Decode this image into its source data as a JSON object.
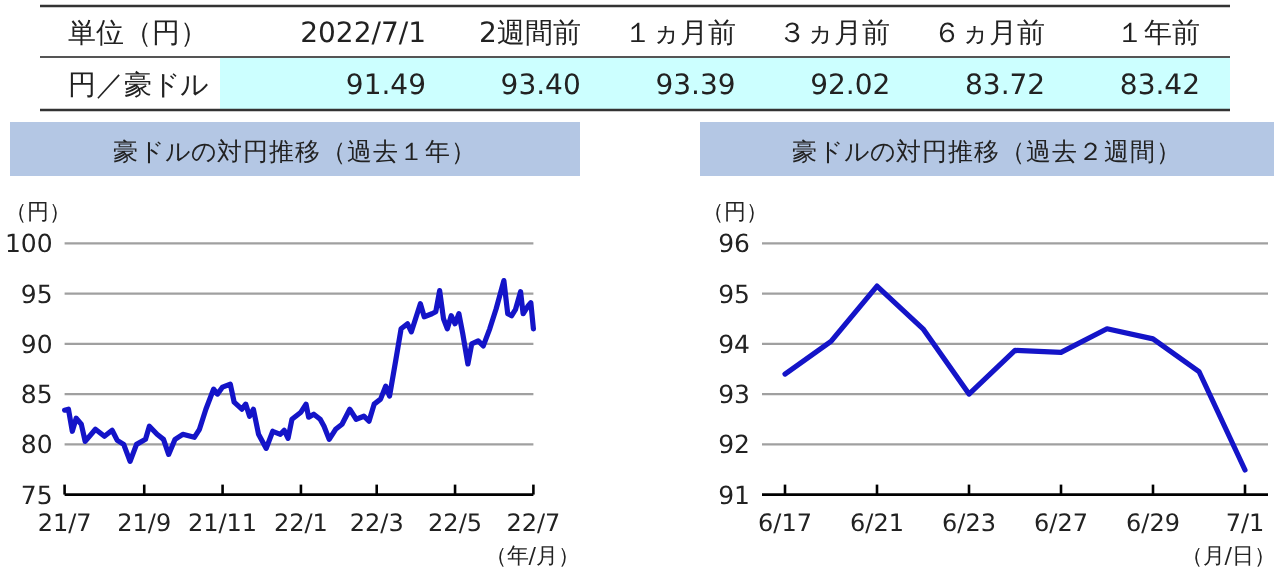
{
  "chart_data": [
    {
      "type": "other",
      "annotations": [
        "単位（円）",
        "円／豪ドル"
      ],
      "categories": [
        "2022/7/1",
        "2週間前",
        "１ヵ月前",
        "３ヵ月前",
        "６ヵ月前",
        "１年前"
      ],
      "value_labels": [
        "91.49",
        "93.40",
        "93.39",
        "92.02",
        "83.72",
        "83.42"
      ]
    },
    {
      "type": "line",
      "title": "豪ドルの対円推移（過去１年）",
      "ylabel": "（円）",
      "xlabel": "（年/月）",
      "grid": "y",
      "x": [
        "2021-07-01",
        "2021-07-04",
        "2021-07-07",
        "2021-07-10",
        "2021-07-14",
        "2021-07-17",
        "2021-07-25",
        "2021-08-01",
        "2021-08-07",
        "2021-08-11",
        "2021-08-16",
        "2021-08-21",
        "2021-08-26",
        "2021-09-02",
        "2021-09-05",
        "2021-09-11",
        "2021-09-16",
        "2021-09-20",
        "2021-09-25",
        "2021-10-01",
        "2021-10-10",
        "2021-10-14",
        "2021-10-19",
        "2021-10-25",
        "2021-10-28",
        "2021-11-01",
        "2021-11-07",
        "2021-11-10",
        "2021-11-16",
        "2021-11-19",
        "2021-11-22",
        "2021-11-25",
        "2021-11-29",
        "2021-12-05",
        "2021-12-10",
        "2021-12-16",
        "2021-12-19",
        "2021-12-22",
        "2021-12-25",
        "2022-01-01",
        "2022-01-05",
        "2022-01-07",
        "2022-01-11",
        "2022-01-16",
        "2022-01-19",
        "2022-01-23",
        "2022-01-28",
        "2022-02-02",
        "2022-02-08",
        "2022-02-13",
        "2022-02-19",
        "2022-02-23",
        "2022-02-27",
        "2022-03-04",
        "2022-03-08",
        "2022-03-11",
        "2022-03-16",
        "2022-03-20",
        "2022-03-25",
        "2022-03-28",
        "2022-04-04",
        "2022-04-07",
        "2022-04-13",
        "2022-04-16",
        "2022-04-19",
        "2022-04-22",
        "2022-04-25",
        "2022-04-28",
        "2022-05-01",
        "2022-05-04",
        "2022-05-07",
        "2022-05-11",
        "2022-05-14",
        "2022-05-19",
        "2022-05-23",
        "2022-05-28",
        "2022-06-02",
        "2022-06-08",
        "2022-06-11",
        "2022-06-14",
        "2022-06-17",
        "2022-06-21",
        "2022-06-23",
        "2022-06-27",
        "2022-06-29",
        "2022-07-01"
      ],
      "series": [
        {
          "color": "#1414c8",
          "values": [
            83.4,
            83.5,
            81.3,
            82.6,
            82.0,
            80.3,
            81.5,
            80.8,
            81.4,
            80.4,
            80.0,
            78.3,
            80.0,
            80.5,
            81.8,
            81.0,
            80.5,
            79.0,
            80.5,
            81.0,
            80.7,
            81.5,
            83.5,
            85.5,
            85.0,
            85.7,
            86.0,
            84.2,
            83.5,
            84.0,
            82.8,
            83.5,
            81.0,
            79.6,
            81.3,
            81.0,
            81.4,
            80.6,
            82.5,
            83.2,
            84.0,
            82.7,
            83.0,
            82.5,
            81.8,
            80.5,
            81.5,
            82.0,
            83.5,
            82.5,
            82.8,
            82.3,
            84.0,
            84.5,
            85.8,
            84.8,
            88.5,
            91.5,
            92.0,
            91.2,
            94.0,
            92.7,
            93.0,
            93.2,
            95.3,
            92.5,
            91.5,
            92.8,
            92.0,
            93.0,
            91.0,
            88.0,
            90.0,
            90.3,
            89.8,
            91.5,
            93.5,
            96.3,
            93.0,
            92.8,
            93.4,
            95.2,
            93.0,
            93.8,
            94.1,
            91.5
          ]
        }
      ],
      "xlim": [
        "2021-07-01",
        "2022-07-01"
      ],
      "xticks": [
        {
          "value": "2021-07-01",
          "label": "21/7"
        },
        {
          "value": "2021-09-01",
          "label": "21/9"
        },
        {
          "value": "2021-11-01",
          "label": "21/11"
        },
        {
          "value": "2022-01-01",
          "label": "22/1"
        },
        {
          "value": "2022-03-01",
          "label": "22/3"
        },
        {
          "value": "2022-05-01",
          "label": "22/5"
        },
        {
          "value": "2022-07-01",
          "label": "22/7"
        }
      ],
      "ylim": [
        75,
        100
      ],
      "yticks": [
        75,
        80,
        85,
        90,
        95,
        100
      ]
    },
    {
      "type": "line",
      "title": "豪ドルの対円推移（過去２週間）",
      "ylabel": "（円）",
      "xlabel": "（月/日）",
      "grid": "y",
      "categories": [
        "6/17",
        null,
        "6/21",
        null,
        "6/23",
        null,
        "6/27",
        null,
        "6/29",
        null,
        "7/1"
      ],
      "series": [
        {
          "color": "#1414c8",
          "values": [
            93.4,
            94.05,
            95.15,
            94.3,
            93.0,
            93.87,
            93.83,
            94.3,
            94.1,
            93.45,
            91.49
          ]
        }
      ],
      "ylim": [
        91,
        96
      ],
      "yticks": [
        91,
        92,
        93,
        94,
        95,
        96
      ]
    }
  ]
}
